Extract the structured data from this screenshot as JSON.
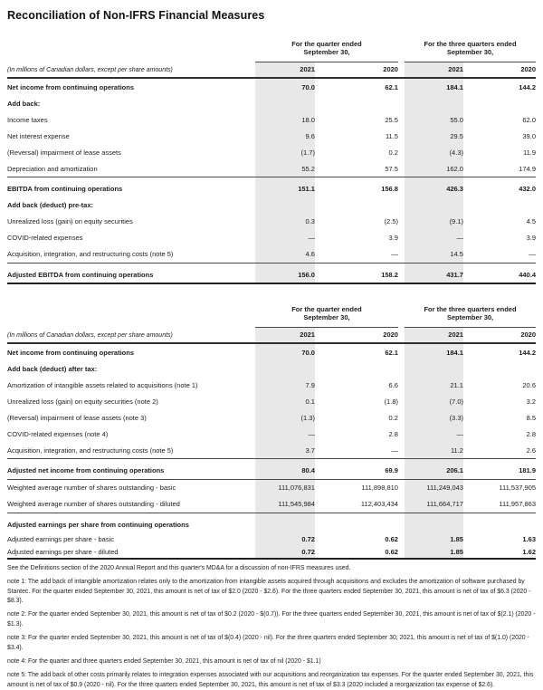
{
  "title": "Reconciliation of Non-IFRS Financial Measures",
  "colors": {
    "band": "#e8e8e8",
    "rule_dark": "#2f2f2f",
    "rule_mid": "#4a4a4a"
  },
  "tables": [
    {
      "group_headers": [
        "For the quarter ended\nSeptember 30,",
        "For the three quarters ended\nSeptember 30,"
      ],
      "unit_label": "(In millions of Canadian dollars, except per share amounts)",
      "year_headers": [
        "2021",
        "2020",
        "2021",
        "2020"
      ],
      "rows": [
        {
          "label": "Net income from continuing operations",
          "bold": true,
          "values": [
            "70.0",
            "62.1",
            "184.1",
            "144.2"
          ]
        },
        {
          "label": "Add back:",
          "bold": true,
          "values": [
            "",
            "",
            "",
            ""
          ]
        },
        {
          "label": "Income taxes",
          "indent": true,
          "values": [
            "18.0",
            "25.5",
            "55.0",
            "62.0"
          ]
        },
        {
          "label": "Net interest expense",
          "indent": true,
          "values": [
            "9.6",
            "11.5",
            "29.5",
            "39.0"
          ]
        },
        {
          "label": "(Reversal) impairment of lease assets",
          "indent": true,
          "values": [
            "(1.7)",
            "0.2",
            "(4.3)",
            "11.9"
          ]
        },
        {
          "label": "Depreciation and amortization",
          "indent": true,
          "values": [
            "55.2",
            "57.5",
            "162.0",
            "174.9"
          ]
        },
        {
          "label": "EBITDA from continuing operations",
          "bold": true,
          "rule_top": true,
          "values": [
            "151.1",
            "156.8",
            "426.3",
            "432.0"
          ]
        },
        {
          "label": "Add back (deduct) pre-tax:",
          "bold": true,
          "values": [
            "",
            "",
            "",
            ""
          ]
        },
        {
          "label": "Unrealized loss (gain) on equity securities",
          "indent": true,
          "values": [
            "0.3",
            "(2.5)",
            "(9.1)",
            "4.5"
          ]
        },
        {
          "label": "COVID-related expenses",
          "indent": true,
          "values": [
            "—",
            "3.9",
            "—",
            "3.9"
          ]
        },
        {
          "label": "Acquisition, integration, and restructuring costs (note 5)",
          "indent": true,
          "values": [
            "4.6",
            "—",
            "14.5",
            "—"
          ]
        },
        {
          "label": "Adjusted EBITDA from continuing operations",
          "bold": true,
          "rule_top": true,
          "rule_bottom": "thick",
          "values": [
            "156.0",
            "158.2",
            "431.7",
            "440.4"
          ]
        }
      ]
    },
    {
      "group_headers": [
        "For the quarter ended\nSeptember 30,",
        "For the three quarters ended\nSeptember 30,"
      ],
      "unit_label": "(In millions of Canadian dollars, except per share amounts)",
      "year_headers": [
        "2021",
        "2020",
        "2021",
        "2020"
      ],
      "rows": [
        {
          "label": "Net income from continuing operations",
          "bold": true,
          "values": [
            "70.0",
            "62.1",
            "184.1",
            "144.2"
          ]
        },
        {
          "label": "Add back (deduct) after tax:",
          "bold": true,
          "values": [
            "",
            "",
            "",
            ""
          ]
        },
        {
          "label": "Amortization of intangible assets related to acquisitions (note 1)",
          "indent": true,
          "values": [
            "7.9",
            "6.6",
            "21.1",
            "20.6"
          ]
        },
        {
          "label": "Unrealized loss (gain) on equity securities (note 2)",
          "indent": true,
          "values": [
            "0.1",
            "(1.8)",
            "(7.0)",
            "3.2"
          ]
        },
        {
          "label": "(Reversal) impairment of lease assets (note 3)",
          "indent": true,
          "values": [
            "(1.3)",
            "0.2",
            "(3.3)",
            "8.5"
          ]
        },
        {
          "label": "COVID-related expenses (note 4)",
          "indent": true,
          "values": [
            "—",
            "2.8",
            "—",
            "2.8"
          ]
        },
        {
          "label": "Acquisition, integration, and restructuring costs (note 5)",
          "indent": true,
          "values": [
            "3.7",
            "—",
            "11.2",
            "2.6"
          ]
        },
        {
          "label": "Adjusted net income from continuing operations",
          "bold": true,
          "rule_top": true,
          "rule_bottom": "thin",
          "values": [
            "80.4",
            "69.9",
            "206.1",
            "181.9"
          ]
        },
        {
          "label": "Weighted average number of shares outstanding - basic",
          "values": [
            "111,076,831",
            "111,898,810",
            "111,249,043",
            "111,537,905"
          ]
        },
        {
          "label": "Weighted average number of shares outstanding - diluted",
          "values": [
            "111,545,984",
            "112,403,434",
            "111,664,717",
            "111,957,863"
          ]
        },
        {
          "label": "Adjusted earnings per share from continuing operations",
          "bold": true,
          "rule_top": true,
          "values": [
            "",
            "",
            "",
            ""
          ]
        },
        {
          "label": "Adjusted earnings per share - basic",
          "values_bold": true,
          "compact": true,
          "values": [
            "0.72",
            "0.62",
            "1.85",
            "1.63"
          ]
        },
        {
          "label": "Adjusted earnings per share - diluted",
          "values_bold": true,
          "compact": true,
          "rule_bottom": "thick",
          "values": [
            "0.72",
            "0.62",
            "1.85",
            "1.62"
          ]
        }
      ]
    }
  ],
  "footnotes": [
    "See the Definitions section of the 2020 Annual Report and this quarter's MD&A for a discussion of non-IFRS measures used.",
    "note 1: The add back of intangible amortization relates only to the amortization from intangible assets acquired through acquisitions and excludes the amortization of software purchased by Stantec. For the quarter ended September 30, 2021, this amount is net of tax of $2.0 (2020 - $2.6). For the three quarters ended September 30, 2021, this amount is net of tax of $6.3 (2020 - $8.3).",
    "note 2: For the quarter ended September 30, 2021, this amount is net of tax of $0.2 (2020 - $(0.7)). For the three quarters ended September 30, 2021, this amount is net of tax of $(2.1) (2020 - $1.3).",
    "note 3: For the quarter ended September 30, 2021, this amount is net of tax of $(0.4) (2020 - nil). For the three quarters ended September 30, 2021, this amount is net of tax of $(1.0) (2020 - $3.4).",
    "note 4: For the quarter and three quarters ended September 30, 2021, this amount is net of tax of nil (2020 - $1.1)",
    "note 5: The add back of other costs primarily relates to integration expenses associated with our acquisitions and reorganization tax expenses. For the quarter ended September 30, 2021, this amount is net of tax of $0.9 (2020 - nil). For the three quarters ended September 30, 2021, this amount is net of tax of $3.3 (2020 included a reorganization tax expense of $2.6)."
  ]
}
